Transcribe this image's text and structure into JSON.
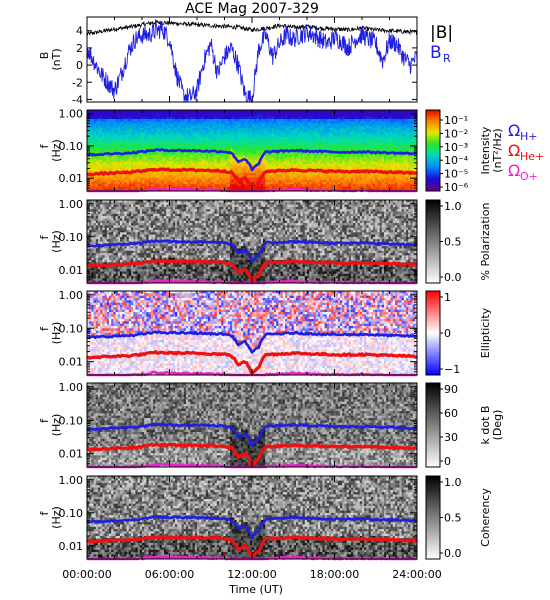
{
  "chart_data": {
    "type": "multi-panel spectrogram",
    "title": "ACE Mag 2007-329",
    "xlabel": "Time (UT)",
    "x_ticks": [
      "00:00:00",
      "06:00:00",
      "12:00:00",
      "18:00:00",
      "24:00:00"
    ],
    "x_range_hours": [
      0,
      24
    ],
    "panels": [
      {
        "id": "B",
        "type": "line",
        "ylabel": "B",
        "yunit": "(nT)",
        "ylim": [
          -4.3,
          5.6
        ],
        "y_ticks": [
          "4",
          "2",
          "0",
          "-2",
          "-4"
        ],
        "y_tick_values": [
          4,
          2,
          0,
          -2,
          -4
        ],
        "series": [
          {
            "name": "|B|",
            "color": "#000000",
            "x_hours": [
              0,
              1,
              2,
              3,
              4,
              5,
              6,
              7,
              8,
              9,
              10,
              11,
              12,
              13,
              14,
              15,
              16,
              17,
              18,
              19,
              20,
              21,
              22,
              23,
              24
            ],
            "values": [
              3.6,
              3.9,
              4.2,
              4.4,
              4.7,
              5.0,
              4.9,
              4.8,
              4.7,
              4.6,
              4.5,
              4.4,
              4.1,
              4.3,
              4.6,
              4.4,
              4.5,
              4.3,
              4.2,
              4.1,
              4.3,
              4.1,
              4.0,
              3.9,
              3.8
            ]
          },
          {
            "name": "B_R",
            "label_main": "B",
            "label_sub": "R",
            "color": "#1f1fe0",
            "x_hours": [
              0,
              0.5,
              1,
              1.5,
              2,
              2.5,
              3,
              3.5,
              4,
              4.5,
              5,
              5.5,
              6,
              6.5,
              7,
              7.5,
              8,
              8.5,
              9,
              9.5,
              10,
              10.5,
              11,
              11.5,
              12,
              12.5,
              13,
              13.5,
              14,
              14.5,
              15,
              15.5,
              16,
              16.5,
              17,
              17.5,
              18,
              18.5,
              19,
              19.5,
              20,
              20.5,
              21,
              21.5,
              22,
              22.5,
              23,
              23.5,
              24
            ],
            "values": [
              2.0,
              0.5,
              -1.0,
              -2.0,
              -3.0,
              -1.0,
              1.5,
              3.0,
              3.5,
              3.5,
              4.0,
              4.2,
              3.0,
              -1.0,
              -3.5,
              -3.8,
              -3.0,
              0.5,
              2.5,
              -1.0,
              1.0,
              2.0,
              0.0,
              -3.5,
              -4.0,
              2.0,
              3.5,
              1.0,
              2.5,
              3.5,
              3.0,
              3.5,
              3.8,
              3.5,
              3.0,
              2.5,
              3.2,
              2.8,
              2.0,
              3.0,
              3.5,
              3.0,
              2.5,
              0.5,
              2.8,
              2.5,
              1.0,
              0.0,
              1.0
            ]
          }
        ]
      },
      {
        "id": "intensity",
        "type": "heatmap",
        "ylabel": "f",
        "yunit": "(Hz)",
        "ylim_log": [
          0.004,
          1.3
        ],
        "y_ticks": [
          "1.00",
          "0.10",
          "0.01"
        ],
        "y_tick_values": [
          1.0,
          0.1,
          0.01
        ],
        "colorbar_label": "Intensity",
        "colorbar_unit": "(nT²/Hz)",
        "colorbar_ticks": [
          "10⁻¹",
          "10⁻²",
          "10⁻³",
          "10⁻⁴",
          "10⁻⁵",
          "10⁻⁶"
        ],
        "colorbar_scale": "rainbow"
      },
      {
        "id": "polarization",
        "type": "heatmap",
        "ylabel": "f",
        "yunit": "(Hz)",
        "ylim_log": [
          0.004,
          1.3
        ],
        "y_ticks": [
          "1.00",
          "0.10",
          "0.01"
        ],
        "y_tick_values": [
          1.0,
          0.1,
          0.01
        ],
        "colorbar_label": "% Polarization",
        "colorbar_ticks": [
          "1.0",
          "0.5",
          "0.0"
        ],
        "colorbar_tick_values": [
          1.0,
          0.5,
          0.0
        ],
        "colorbar_scale": "grayscale"
      },
      {
        "id": "ellipticity",
        "type": "heatmap",
        "ylabel": "f",
        "yunit": "(Hz)",
        "ylim_log": [
          0.004,
          1.3
        ],
        "y_ticks": [
          "1.00",
          "0.10",
          "0.01"
        ],
        "y_tick_values": [
          1.0,
          0.1,
          0.01
        ],
        "colorbar_label": "Ellipticity",
        "colorbar_ticks": [
          "1",
          "0",
          "−1"
        ],
        "colorbar_tick_values": [
          1,
          0,
          -1
        ],
        "colorbar_scale": "blue-white-red"
      },
      {
        "id": "kdotb",
        "type": "heatmap",
        "ylabel": "f",
        "yunit": "(Hz)",
        "ylim_log": [
          0.004,
          1.3
        ],
        "y_ticks": [
          "1.00",
          "0.10",
          "0.01"
        ],
        "y_tick_values": [
          1.0,
          0.1,
          0.01
        ],
        "colorbar_label": "k dot B",
        "colorbar_unit": "(Deg)",
        "colorbar_ticks": [
          "90",
          "60",
          "30",
          "0"
        ],
        "colorbar_tick_values": [
          90,
          60,
          30,
          0
        ],
        "colorbar_scale": "grayscale"
      },
      {
        "id": "coherency",
        "type": "heatmap",
        "ylabel": "f",
        "yunit": "(Hz)",
        "ylim_log": [
          0.004,
          1.3
        ],
        "y_ticks": [
          "1.00",
          "0.10",
          "0.01"
        ],
        "y_tick_values": [
          1.0,
          0.1,
          0.01
        ],
        "colorbar_label": "Coherency",
        "colorbar_ticks": [
          "1.0",
          "0.5",
          "0.0"
        ],
        "colorbar_tick_values": [
          1.0,
          0.5,
          0.0
        ],
        "colorbar_scale": "grayscale"
      }
    ],
    "gyrofrequency_lines": [
      {
        "name": "Ω_H+",
        "label_main": "Ω",
        "label_sub": "H+",
        "color": "#1f1fe0",
        "x_hours": [
          0,
          1,
          2,
          3,
          4,
          5,
          6,
          7,
          8,
          9,
          10,
          10.5,
          11,
          11.5,
          12,
          12.5,
          13,
          14,
          15,
          16,
          17,
          18,
          19,
          20,
          21,
          22,
          23,
          24
        ],
        "values": [
          0.053,
          0.055,
          0.058,
          0.06,
          0.066,
          0.075,
          0.073,
          0.072,
          0.071,
          0.069,
          0.067,
          0.06,
          0.032,
          0.04,
          0.018,
          0.028,
          0.065,
          0.068,
          0.072,
          0.069,
          0.067,
          0.065,
          0.064,
          0.066,
          0.063,
          0.061,
          0.059,
          0.058
        ]
      },
      {
        "name": "Ω_He+",
        "label_main": "Ω",
        "label_sub": "He+",
        "color": "#ee1111",
        "x_hours": [
          0,
          1,
          2,
          3,
          4,
          5,
          6,
          7,
          8,
          9,
          10,
          10.5,
          11,
          11.5,
          12,
          12.5,
          13,
          14,
          15,
          16,
          17,
          18,
          19,
          20,
          21,
          22,
          23,
          24
        ],
        "values": [
          0.0133,
          0.0138,
          0.0145,
          0.015,
          0.0165,
          0.0188,
          0.0183,
          0.018,
          0.0178,
          0.0173,
          0.0168,
          0.015,
          0.008,
          0.01,
          0.0045,
          0.007,
          0.0163,
          0.017,
          0.018,
          0.0173,
          0.0168,
          0.0163,
          0.016,
          0.0165,
          0.0158,
          0.0153,
          0.0148,
          0.0145
        ]
      },
      {
        "name": "Ω_O+",
        "label_main": "Ω",
        "label_sub": "O+",
        "color": "#ee22cc",
        "x_hours": [
          0,
          1,
          2,
          3,
          4,
          5,
          6,
          7,
          8,
          9,
          10,
          10.5,
          11,
          11.5,
          12,
          12.5,
          13,
          14,
          15,
          16,
          17,
          18,
          19,
          20,
          21,
          22,
          23,
          24
        ],
        "values": [
          0.0033,
          0.0034,
          0.0036,
          0.0038,
          0.0041,
          0.0047,
          0.0046,
          0.0045,
          0.0044,
          0.0043,
          0.0042,
          0.0038,
          0.002,
          0.0025,
          0.0011,
          0.0018,
          0.0041,
          0.0043,
          0.0045,
          0.0043,
          0.0042,
          0.0041,
          0.004,
          0.0041,
          0.004,
          0.0038,
          0.0037,
          0.0036
        ]
      }
    ]
  }
}
